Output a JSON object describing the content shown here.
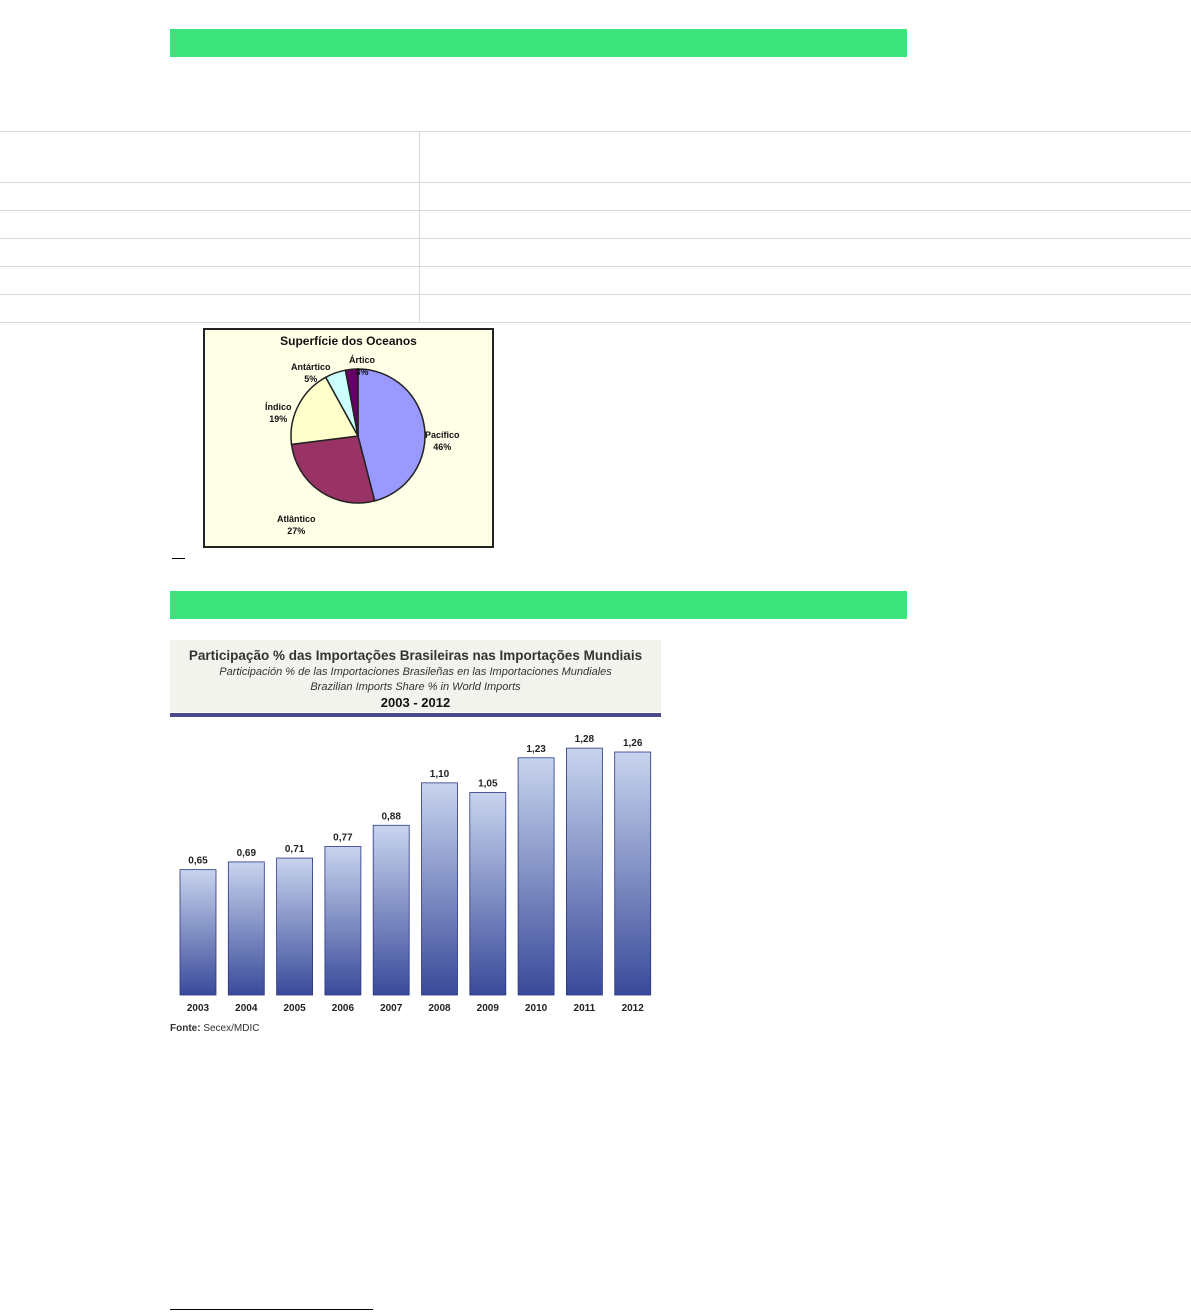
{
  "colors": {
    "green_band": "#3ce27c",
    "bar_dark": "#3a4a9a",
    "bar_light": "#c8d4ee"
  },
  "chart_data": [
    {
      "type": "pie",
      "title": "Superfície dos Oceanos",
      "labels": [
        "Pacífico",
        "Atlântico",
        "Índico",
        "Antártico",
        "Ártico"
      ],
      "values": [
        46,
        27,
        19,
        5,
        3
      ],
      "value_labels": [
        "46%",
        "27%",
        "19%",
        "5%",
        "3%"
      ],
      "colors": [
        "#9999ff",
        "#993366",
        "#ffffcc",
        "#ccffff",
        "#660066"
      ]
    },
    {
      "type": "bar",
      "title": "Participação % das Importações Brasileiras nas Importações Mundiais",
      "subtitle_es": "Participación % de las Importaciones Brasileñas en las Importaciones Mundiales",
      "subtitle_en": "Brazilian Imports Share % in World Imports",
      "period": "2003 - 2012",
      "categories": [
        "2003",
        "2004",
        "2005",
        "2006",
        "2007",
        "2008",
        "2009",
        "2010",
        "2011",
        "2012"
      ],
      "values": [
        0.65,
        0.69,
        0.71,
        0.77,
        0.88,
        1.1,
        1.05,
        1.23,
        1.28,
        1.26
      ],
      "value_labels": [
        "0,65",
        "0,69",
        "0,71",
        "0,77",
        "0,88",
        "1,10",
        "1,05",
        "1,23",
        "1,28",
        "1,26"
      ],
      "ylim": [
        0,
        1.4
      ],
      "source_label": "Fonte:",
      "source": "Secex/MDIC"
    }
  ]
}
